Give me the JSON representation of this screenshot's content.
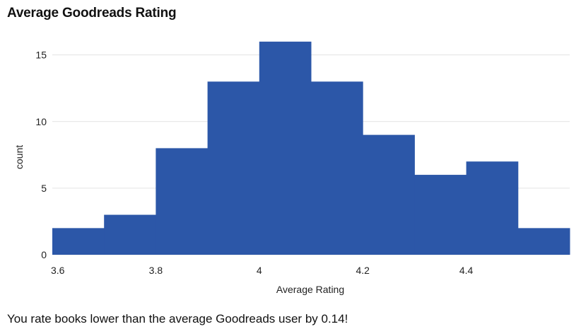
{
  "title": "Average Goodreads Rating",
  "caption": "You rate books lower than the average Goodreads user by 0.14!",
  "colors": {
    "bar": "#2c57a8",
    "grid": "#e3e3e3",
    "axis_text": "#222222"
  },
  "chart_data": {
    "type": "bar",
    "title": "Average Goodreads Rating",
    "xlabel": "Average Rating",
    "ylabel": "count",
    "bins": [
      {
        "x0": 3.6,
        "x1": 3.7,
        "count": 2
      },
      {
        "x0": 3.7,
        "x1": 3.8,
        "count": 3
      },
      {
        "x0": 3.8,
        "x1": 3.9,
        "count": 8
      },
      {
        "x0": 3.9,
        "x1": 4.0,
        "count": 13
      },
      {
        "x0": 4.0,
        "x1": 4.1,
        "count": 16
      },
      {
        "x0": 4.1,
        "x1": 4.2,
        "count": 13
      },
      {
        "x0": 4.2,
        "x1": 4.3,
        "count": 9
      },
      {
        "x0": 4.3,
        "x1": 4.4,
        "count": 6
      },
      {
        "x0": 4.4,
        "x1": 4.5,
        "count": 7
      },
      {
        "x0": 4.5,
        "x1": 4.6,
        "count": 2
      }
    ],
    "xlim": [
      3.6,
      4.6
    ],
    "ylim": [
      0,
      17
    ],
    "x_ticks": [
      {
        "value": 3.6,
        "label": "3.6"
      },
      {
        "value": 3.8,
        "label": "3.8"
      },
      {
        "value": 4.0,
        "label": "4"
      },
      {
        "value": 4.2,
        "label": "4.2"
      },
      {
        "value": 4.4,
        "label": "4.4"
      }
    ],
    "y_ticks": [
      {
        "value": 0,
        "label": "0"
      },
      {
        "value": 5,
        "label": "5"
      },
      {
        "value": 10,
        "label": "10"
      },
      {
        "value": 15,
        "label": "15"
      }
    ],
    "grid": true,
    "legend": "none"
  }
}
